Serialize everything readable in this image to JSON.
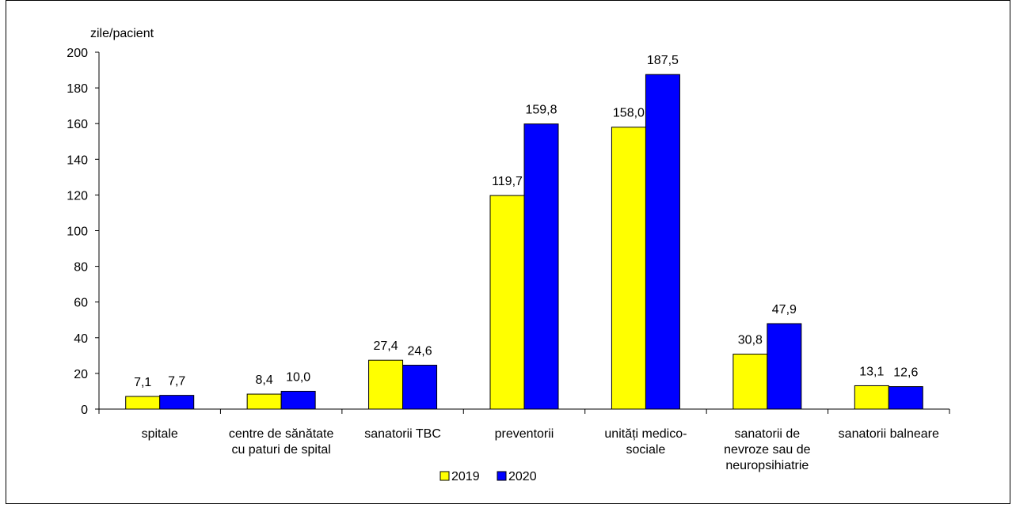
{
  "chart_data": {
    "type": "bar",
    "ylabel": "zile/pacient",
    "ylim": [
      0,
      200
    ],
    "yticks": [
      "0",
      "20",
      "40",
      "60",
      "80",
      "100",
      "120",
      "140",
      "160",
      "180",
      "200"
    ],
    "categories": [
      [
        "spitale"
      ],
      [
        "centre de sănătate",
        "cu paturi de spital"
      ],
      [
        "sanatorii TBC"
      ],
      [
        "preventorii"
      ],
      [
        "unități medico-",
        "sociale"
      ],
      [
        "sanatorii de",
        "nevroze sau de",
        "neuropsihiatrie"
      ],
      [
        "sanatorii balneare"
      ]
    ],
    "series": [
      {
        "name": "2019",
        "color": "#ffff00",
        "values": [
          7.1,
          8.4,
          27.4,
          119.7,
          158.0,
          30.8,
          13.1
        ],
        "labels": [
          "7,1",
          "8,4",
          "27,4",
          "119,7",
          "158,0",
          "30,8",
          "13,1"
        ]
      },
      {
        "name": "2020",
        "color": "#0000ff",
        "values": [
          7.7,
          10.0,
          24.6,
          159.8,
          187.5,
          47.9,
          12.6
        ],
        "labels": [
          "7,7",
          "10,0",
          "24,6",
          "159,8",
          "187,5",
          "47,9",
          "12,6"
        ]
      }
    ],
    "legend_position": "bottom-center",
    "grid": false
  }
}
